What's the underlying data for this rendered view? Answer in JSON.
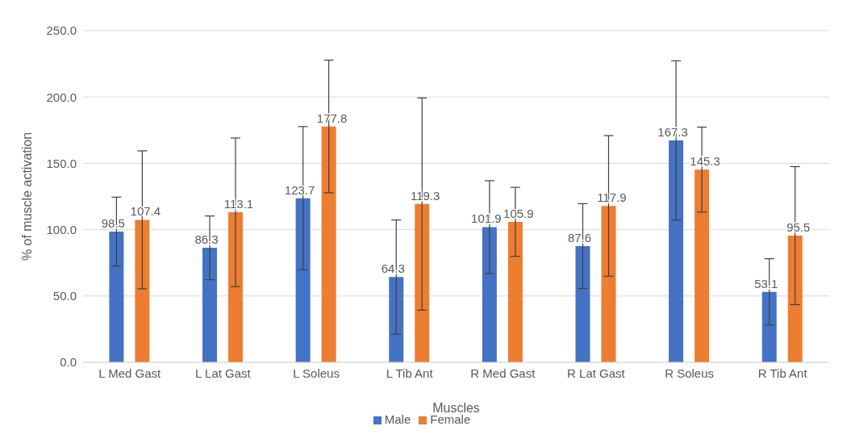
{
  "chart_data": {
    "type": "bar",
    "xlabel": "Muscles",
    "ylabel": "% of muscle activation",
    "categories": [
      "L Med Gast",
      "L Lat Gast",
      "L Soleus",
      "L Tib Ant",
      "R Med Gast",
      "R Lat Gast",
      "R Soleus",
      "R Tib Ant"
    ],
    "series": [
      {
        "name": "Male",
        "color": "#4472c4",
        "values": [
          98.5,
          86.3,
          123.7,
          64.3,
          101.9,
          87.6,
          167.3,
          53.1
        ],
        "errors": [
          26,
          24,
          54,
          43,
          35,
          32,
          60,
          25
        ]
      },
      {
        "name": "Female",
        "color": "#ed7d31",
        "values": [
          107.4,
          113.1,
          177.8,
          119.3,
          105.9,
          117.9,
          145.3,
          95.5
        ],
        "errors": [
          52,
          56,
          50,
          80,
          26,
          53,
          32,
          52
        ]
      }
    ],
    "ylim": [
      0,
      250
    ],
    "yticks": [
      {
        "value": 0,
        "label": "0.0"
      },
      {
        "value": 50,
        "label": "50.0"
      },
      {
        "value": 100,
        "label": "100.0"
      },
      {
        "value": 150,
        "label": "150.0"
      },
      {
        "value": 200,
        "label": "200.0"
      },
      {
        "value": 250,
        "label": "250.0"
      }
    ],
    "grid": "y",
    "legend": "bottom",
    "data_labels": true
  }
}
